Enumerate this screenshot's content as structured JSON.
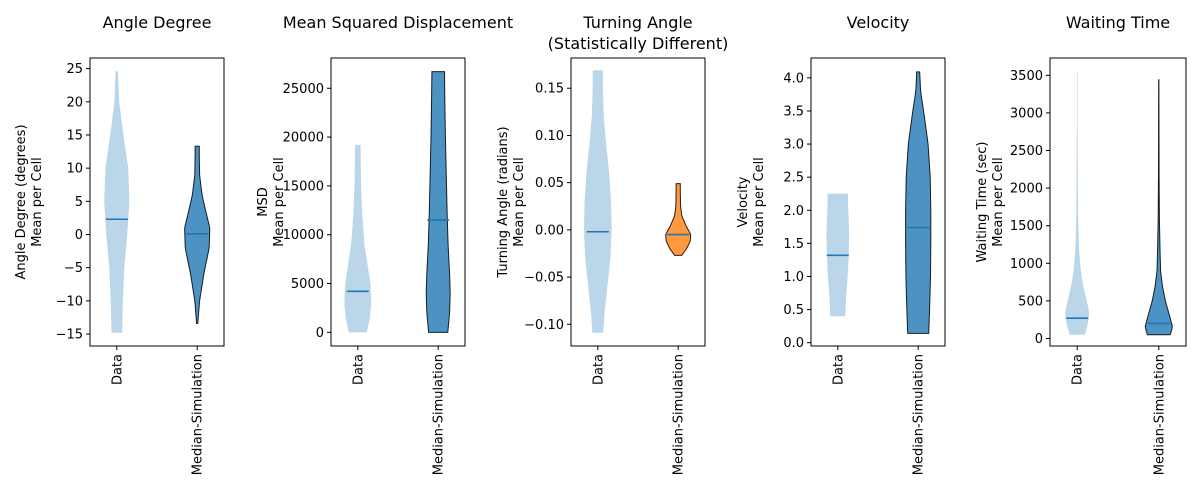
{
  "figure": {
    "background": "#ffffff"
  },
  "chart_data": [
    {
      "type": "violin",
      "title": [
        "Angle Degree"
      ],
      "ylabel": [
        "Angle Degree (degrees)",
        "Mean per Cell"
      ],
      "categories": [
        "Data",
        "Median-Simulation"
      ],
      "ylim": [
        -16.8,
        26.6
      ],
      "yticks": [
        -15,
        -10,
        -5,
        0,
        5,
        10,
        15,
        20,
        25
      ],
      "ytick_labels": [
        "−15",
        "−10",
        "−5",
        "0",
        "5",
        "10",
        "15",
        "20",
        "25"
      ],
      "series": [
        {
          "category": "Data",
          "color": "#1f77b4",
          "alpha": 0.3,
          "edge": "none",
          "min": -14.8,
          "max": 24.6,
          "mean": 2.3,
          "density": [
            [
              -14.8,
              0.18
            ],
            [
              -10,
              0.2
            ],
            [
              -5,
              0.25
            ],
            [
              0,
              0.35
            ],
            [
              5,
              0.42
            ],
            [
              10,
              0.38
            ],
            [
              15,
              0.22
            ],
            [
              20,
              0.08
            ],
            [
              24.6,
              0.04
            ]
          ]
        },
        {
          "category": "Median-Simulation",
          "color": "#1f77b4",
          "alpha": 0.8,
          "edge": "#000000",
          "min": -13.4,
          "max": 13.3,
          "mean": 0.1,
          "density": [
            [
              -13.4,
              0.02
            ],
            [
              -10,
              0.08
            ],
            [
              -6,
              0.22
            ],
            [
              -2,
              0.4
            ],
            [
              1,
              0.42
            ],
            [
              4,
              0.26
            ],
            [
              6,
              0.16
            ],
            [
              9,
              0.08
            ],
            [
              12,
              0.07
            ],
            [
              13.3,
              0.07
            ]
          ]
        }
      ]
    },
    {
      "type": "violin",
      "title": [
        "Mean Squared Displacement"
      ],
      "ylabel": [
        "MSD",
        "Mean per Cell"
      ],
      "categories": [
        "Data",
        "Median-Simulation"
      ],
      "ylim": [
        -1400,
        28100
      ],
      "yticks": [
        0,
        5000,
        10000,
        15000,
        20000,
        25000
      ],
      "ytick_labels": [
        "0",
        "5000",
        "10000",
        "15000",
        "20000",
        "25000"
      ],
      "series": [
        {
          "category": "Data",
          "color": "#1f77b4",
          "alpha": 0.3,
          "edge": "none",
          "min": 0,
          "max": 19200,
          "mean": 4200,
          "density": [
            [
              0,
              0.3
            ],
            [
              1500,
              0.4
            ],
            [
              3000,
              0.45
            ],
            [
              5000,
              0.42
            ],
            [
              7000,
              0.32
            ],
            [
              9000,
              0.22
            ],
            [
              12000,
              0.15
            ],
            [
              15000,
              0.11
            ],
            [
              17000,
              0.1
            ],
            [
              19200,
              0.09
            ]
          ]
        },
        {
          "category": "Median-Simulation",
          "color": "#1f77b4",
          "alpha": 0.8,
          "edge": "#000000",
          "min": 0,
          "max": 26700,
          "mean": 11500,
          "density": [
            [
              0,
              0.32
            ],
            [
              2000,
              0.38
            ],
            [
              4000,
              0.4
            ],
            [
              6000,
              0.38
            ],
            [
              9000,
              0.33
            ],
            [
              12000,
              0.3
            ],
            [
              16000,
              0.27
            ],
            [
              20000,
              0.24
            ],
            [
              24000,
              0.22
            ],
            [
              26700,
              0.21
            ]
          ]
        }
      ]
    },
    {
      "type": "violin",
      "title": [
        "Turning Angle",
        "(Statistically Different)"
      ],
      "ylabel": [
        "Turning Angle (radians)",
        "Mean per Cell"
      ],
      "categories": [
        "Data",
        "Median-Simulation"
      ],
      "ylim": [
        -0.123,
        0.182
      ],
      "yticks": [
        -0.1,
        -0.05,
        0.0,
        0.05,
        0.1,
        0.15
      ],
      "ytick_labels": [
        "−0.10",
        "−0.05",
        "0.00",
        "0.05",
        "0.10",
        "0.15"
      ],
      "series": [
        {
          "category": "Data",
          "color": "#1f77b4",
          "alpha": 0.3,
          "edge": "none",
          "min": -0.109,
          "max": 0.169,
          "mean": -0.002,
          "density": [
            [
              -0.109,
              0.18
            ],
            [
              -0.09,
              0.22
            ],
            [
              -0.06,
              0.32
            ],
            [
              -0.03,
              0.42
            ],
            [
              0.0,
              0.46
            ],
            [
              0.03,
              0.44
            ],
            [
              0.06,
              0.38
            ],
            [
              0.09,
              0.28
            ],
            [
              0.12,
              0.2
            ],
            [
              0.15,
              0.17
            ],
            [
              0.169,
              0.17
            ]
          ]
        },
        {
          "category": "Median-Simulation",
          "color": "#ff7f0e",
          "alpha": 0.8,
          "edge": "#000000",
          "min": -0.027,
          "max": 0.049,
          "mean": -0.005,
          "density": [
            [
              -0.027,
              0.12
            ],
            [
              -0.02,
              0.28
            ],
            [
              -0.012,
              0.4
            ],
            [
              -0.005,
              0.42
            ],
            [
              0.005,
              0.25
            ],
            [
              0.015,
              0.12
            ],
            [
              0.025,
              0.08
            ],
            [
              0.04,
              0.07
            ],
            [
              0.049,
              0.07
            ]
          ]
        }
      ]
    },
    {
      "type": "violin",
      "title": [
        "Velocity"
      ],
      "ylabel": [
        "Velocity",
        "Mean per Cell"
      ],
      "categories": [
        "Data",
        "Median-Simulation"
      ],
      "ylim": [
        -0.05,
        4.3
      ],
      "yticks": [
        0.0,
        0.5,
        1.0,
        1.5,
        2.0,
        2.5,
        3.0,
        3.5,
        4.0
      ],
      "ytick_labels": [
        "0.0",
        "0.5",
        "1.0",
        "1.5",
        "2.0",
        "2.5",
        "3.0",
        "3.5",
        "4.0"
      ],
      "series": [
        {
          "category": "Data",
          "color": "#1f77b4",
          "alpha": 0.3,
          "edge": "none",
          "min": 0.4,
          "max": 2.25,
          "mean": 1.32,
          "density": [
            [
              0.4,
              0.25
            ],
            [
              0.7,
              0.28
            ],
            [
              1.0,
              0.33
            ],
            [
              1.3,
              0.36
            ],
            [
              1.6,
              0.38
            ],
            [
              1.9,
              0.36
            ],
            [
              2.1,
              0.34
            ],
            [
              2.25,
              0.34
            ]
          ]
        },
        {
          "category": "Median-Simulation",
          "color": "#1f77b4",
          "alpha": 0.8,
          "edge": "#000000",
          "min": 0.14,
          "max": 4.09,
          "mean": 1.74,
          "density": [
            [
              0.14,
              0.35
            ],
            [
              0.5,
              0.38
            ],
            [
              1.0,
              0.41
            ],
            [
              1.5,
              0.42
            ],
            [
              2.0,
              0.42
            ],
            [
              2.5,
              0.4
            ],
            [
              3.0,
              0.33
            ],
            [
              3.5,
              0.18
            ],
            [
              3.8,
              0.08
            ],
            [
              4.09,
              0.05
            ]
          ]
        }
      ]
    },
    {
      "type": "violin",
      "title": [
        "Waiting Time"
      ],
      "ylabel": [
        "Waiting Time (sec)",
        "Mean per Cell"
      ],
      "categories": [
        "Data",
        "Median-Simulation"
      ],
      "ylim": [
        -100,
        3730
      ],
      "yticks": [
        0,
        500,
        1000,
        1500,
        2000,
        2500,
        3000,
        3500
      ],
      "ytick_labels": [
        "0",
        "500",
        "1000",
        "1500",
        "2000",
        "2500",
        "3000",
        "3500"
      ],
      "series": [
        {
          "category": "Data",
          "color": "#1f77b4",
          "alpha": 0.3,
          "edge": "none",
          "min": 50,
          "max": 3550,
          "mean": 270,
          "density": [
            [
              50,
              0.25
            ],
            [
              200,
              0.36
            ],
            [
              350,
              0.4
            ],
            [
              500,
              0.32
            ],
            [
              700,
              0.2
            ],
            [
              900,
              0.12
            ],
            [
              1200,
              0.06
            ],
            [
              1600,
              0.03
            ],
            [
              2200,
              0.02
            ],
            [
              3000,
              0.01
            ],
            [
              3550,
              0.01
            ]
          ]
        },
        {
          "category": "Median-Simulation",
          "color": "#1f77b4",
          "alpha": 0.8,
          "edge": "#000000",
          "min": 50,
          "max": 3440,
          "mean": 200,
          "density": [
            [
              50,
              0.38
            ],
            [
              150,
              0.46
            ],
            [
              300,
              0.36
            ],
            [
              500,
              0.22
            ],
            [
              700,
              0.12
            ],
            [
              900,
              0.06
            ],
            [
              1200,
              0.04
            ],
            [
              1600,
              0.02
            ],
            [
              2200,
              0.01
            ],
            [
              3000,
              0.006
            ],
            [
              3440,
              0.004
            ]
          ]
        }
      ]
    }
  ]
}
